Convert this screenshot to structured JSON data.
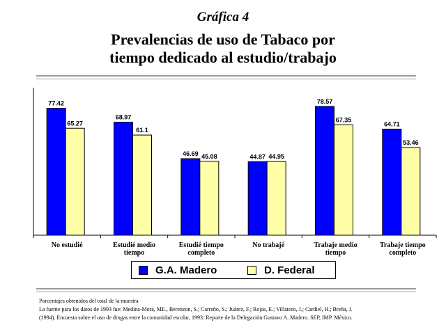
{
  "header": {
    "kicker": "Gráfica 4",
    "title_line1": "Prevalencias de uso de Tabaco por",
    "title_line2": "tiempo dedicado al estudio/trabajo"
  },
  "chart_data": {
    "type": "bar",
    "categories": [
      [
        "No estudié"
      ],
      [
        "Estudié medio",
        "tiempo"
      ],
      [
        "Estudié tiempo",
        "completo"
      ],
      [
        "No trabajé"
      ],
      [
        "Trabaje medio",
        "tiempo"
      ],
      [
        "Trabaje tiempo",
        "completo"
      ]
    ],
    "series": [
      {
        "name": "G.A. Madero",
        "color": "#0000ff",
        "values": [
          77.42,
          68.97,
          46.69,
          44.87,
          78.57,
          64.71
        ],
        "labels": [
          "77.42",
          "68.97",
          "46.69",
          "44.87",
          "78.57",
          "64.71"
        ]
      },
      {
        "name": "D. Federal",
        "color": "#ffffa8",
        "values": [
          65.27,
          61.1,
          45.08,
          44.95,
          67.35,
          53.46
        ],
        "labels": [
          "65.27",
          "61.1",
          "45.08",
          "44.95",
          "67.35",
          "53.46"
        ]
      }
    ],
    "ylim": [
      0,
      90
    ],
    "grid": false,
    "legend_position": "bottom"
  },
  "footer": {
    "line1": "Porcentajes obtenidos del total de la muestra",
    "line2": "La fuente para los datos de 1993 fue: Medina-Mora, ME., Berenzon, S.; Carreño, S.; Juárez, F.; Rojas, E.; Villatoro, J.; Cardiel, H.; Breña, J.",
    "line3": "(1994). Encuesta sobre el uso de drogas entre la comunidad escolar, 1993: Reporte de la Delegación Gustavo A. Madero. SEP, IMP. México."
  }
}
